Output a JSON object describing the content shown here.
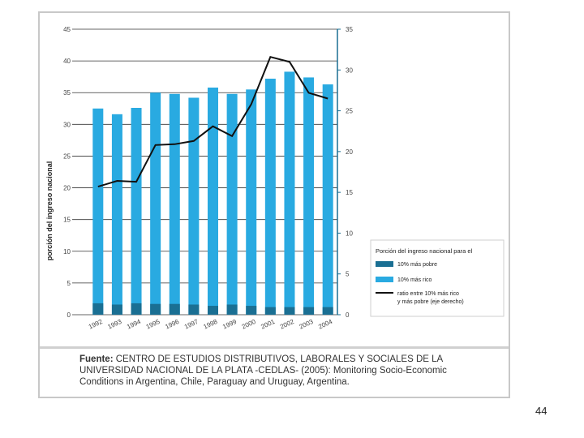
{
  "chart_data": {
    "type": "bar+line",
    "categories": [
      "1992",
      "1993",
      "1994",
      "1995",
      "1996",
      "1997",
      "1998",
      "1999",
      "2000",
      "2001",
      "2002",
      "2003",
      "2004"
    ],
    "series": [
      {
        "name": "10% más pobre",
        "axis": "left",
        "kind": "bar",
        "color": "#1a6f93",
        "values": [
          1.8,
          1.6,
          1.8,
          1.7,
          1.7,
          1.6,
          1.4,
          1.6,
          1.4,
          1.2,
          1.2,
          1.2,
          1.2
        ]
      },
      {
        "name": "10% más rico",
        "axis": "left",
        "kind": "bar",
        "color": "#29aae1",
        "values": [
          32.5,
          31.6,
          32.6,
          35.0,
          34.8,
          34.2,
          35.8,
          34.8,
          35.5,
          37.2,
          38.3,
          37.4,
          36.3
        ]
      },
      {
        "name": "ratio entre 10% más rico y más pobre (eje derecho)",
        "axis": "right",
        "kind": "line",
        "color": "#111111",
        "values": [
          15.7,
          16.4,
          16.3,
          20.8,
          20.9,
          21.3,
          23.1,
          21.9,
          25.8,
          31.6,
          31.0,
          27.2,
          26.5
        ]
      }
    ],
    "ylabel": "porción del ingreso nacional",
    "ylim": [
      0,
      45
    ],
    "y_ticks": [
      "0",
      "5",
      "10",
      "15",
      "20",
      "25",
      "30",
      "35",
      "40",
      "45"
    ],
    "y2lim": [
      0,
      35
    ],
    "y2_ticks": [
      "0",
      "5",
      "10",
      "15",
      "20",
      "25",
      "30",
      "35"
    ],
    "legend_title": "Porción del ingreso nacional para el",
    "legend_position": "right",
    "grid": true
  },
  "source": {
    "label": "Fuente:",
    "text": "CENTRO DE ESTUDIOS DISTRIBUTIVOS, LABORALES Y SOCIALES DE LA UNIVERSIDAD NACIONAL DE LA PLATA -CEDLAS- (2005): Monitoring Socio-Economic Conditions in Argentina, Chile, Paraguay and Uruguay, Argentina."
  },
  "page_number": "44"
}
